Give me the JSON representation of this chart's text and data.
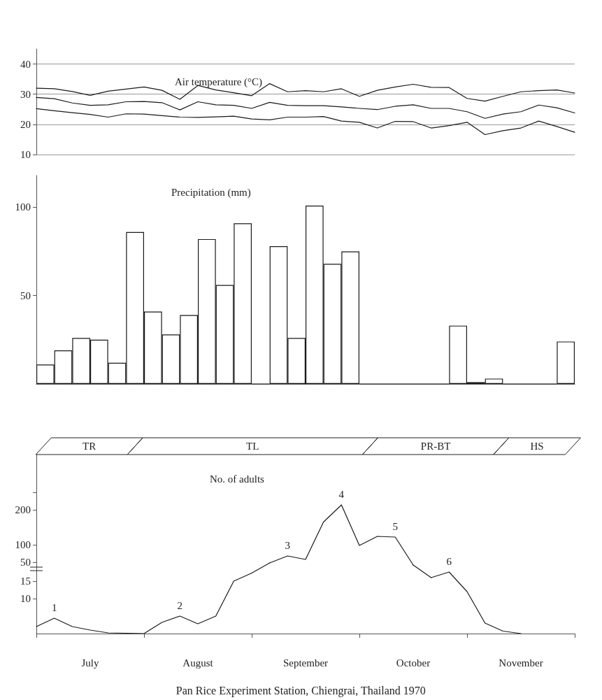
{
  "chart_data": [
    {
      "type": "line",
      "title": "Air temperature (°C)",
      "categories": [
        null,
        null,
        null,
        null,
        null,
        null,
        null,
        null,
        null,
        null,
        null,
        null,
        null,
        null,
        null,
        null,
        null,
        null,
        null,
        null,
        null,
        null,
        null,
        null,
        null,
        null,
        null,
        null,
        null,
        null,
        null
      ],
      "series": [
        {
          "color": "#1a1a1a",
          "values": [
            32,
            31.8,
            30.9,
            29.6,
            31,
            31.7,
            32.4,
            31.3,
            28.3,
            32.9,
            31.4,
            30.5,
            29.5,
            33.5,
            30.8,
            31.2,
            30.8,
            31.8,
            29.3,
            31.3,
            32.4,
            33.3,
            32.3,
            32.2,
            28.6,
            27.7,
            29.3,
            30.8,
            31.2,
            31.4,
            30.4
          ]
        },
        {
          "color": "#1a1a1a",
          "values": [
            28.9,
            28.5,
            27.1,
            26.3,
            26.5,
            27.5,
            27.6,
            27.2,
            24.8,
            27.5,
            26.5,
            26.3,
            25.3,
            27.3,
            26.3,
            26.2,
            26.2,
            25.8,
            25.3,
            24.9,
            26,
            26.5,
            25.3,
            25.3,
            24.2,
            22,
            23.4,
            24.2,
            26.4,
            25.5,
            23.8
          ]
        },
        {
          "color": "#1a1a1a",
          "values": [
            25.2,
            24.5,
            23.9,
            23.3,
            22.4,
            23.5,
            23.4,
            22.9,
            22.4,
            22.3,
            22.5,
            22.7,
            21.8,
            21.5,
            22.4,
            22.4,
            22.6,
            21.1,
            20.7,
            18.8,
            21,
            20.9,
            18.8,
            19.6,
            20.7,
            16.6,
            17.9,
            18.8,
            21.1,
            19.3,
            17.4
          ]
        }
      ],
      "ylim": [
        10,
        45
      ],
      "yticks": [
        10,
        20,
        30,
        40
      ],
      "grid": "y",
      "tick_labels": "y"
    },
    {
      "type": "bar",
      "title": "Precipitation (mm)",
      "color": "#1a1a1a",
      "categories": [
        null,
        null,
        null,
        null,
        null,
        null,
        null,
        null,
        null,
        null,
        null,
        null,
        null,
        null,
        null,
        null,
        null,
        null,
        null,
        null,
        null,
        null,
        null,
        null,
        null,
        null,
        null,
        null,
        null,
        null
      ],
      "values": [
        11,
        19,
        26,
        25,
        12,
        86,
        41,
        28,
        39,
        82,
        56,
        91,
        0,
        78,
        26,
        101,
        68,
        75,
        0,
        0,
        0,
        0,
        0,
        33,
        1,
        3,
        0,
        0,
        0,
        24
      ],
      "ylim": [
        0,
        118
      ],
      "yticks": [
        50,
        100
      ],
      "tick_labels": "y"
    },
    {
      "type": "line",
      "title": "No. of adults",
      "color": "#1a1a1a",
      "categories": [
        null,
        null,
        null,
        null,
        null,
        null,
        null,
        null,
        null,
        null,
        null,
        null,
        null,
        null,
        null,
        null,
        null,
        null,
        null,
        null,
        null,
        null,
        null,
        null,
        null,
        null,
        null,
        null,
        null,
        null,
        null
      ],
      "values": [
        null,
        null,
        null,
        null,
        null,
        null,
        null,
        null,
        null,
        null,
        null,
        null,
        null,
        48,
        68,
        58,
        165,
        214,
        98,
        124,
        122,
        42,
        null,
        null,
        null,
        null,
        null,
        null,
        null,
        null,
        null
      ],
      "ylim": [
        26,
        358
      ],
      "yticks": [
        50,
        100,
        200,
        {
          "value": 250,
          "label": null
        }
      ],
      "tick_labels": "y",
      "annotations": [
        {
          "text": "3",
          "y": 68
        },
        {
          "text": "4",
          "y": 214
        },
        {
          "text": "5",
          "y": 122
        },
        "TR",
        "TL",
        "PR-BT",
        "HS"
      ]
    },
    {
      "type": "line",
      "color": "#1a1a1a",
      "categories": [
        null,
        null,
        null,
        "July",
        null,
        null,
        null,
        null,
        null,
        "August",
        null,
        null,
        null,
        null,
        null,
        "September",
        null,
        null,
        null,
        null,
        null,
        "October",
        null,
        null,
        null,
        null,
        null,
        "November",
        null,
        null,
        null
      ],
      "values": [
        2,
        4.4,
        2,
        1,
        0.2,
        0.1,
        0,
        3.2,
        5,
        2.8,
        5,
        15,
        17.3,
        null,
        null,
        null,
        null,
        null,
        null,
        null,
        null,
        null,
        16,
        17.6,
        12,
        3,
        0.7,
        0,
        null,
        null,
        null
      ],
      "ylim": [
        0,
        18
      ],
      "yticks": [
        10,
        15
      ],
      "annotations": [
        {
          "text": "1",
          "y": 4.4
        },
        {
          "text": "2",
          "y": 5
        },
        {
          "text": "6",
          "y": 17.6
        },
        "Pan Rice Experiment Station, Chiengrai, Thailand 1970"
      ]
    }
  ]
}
